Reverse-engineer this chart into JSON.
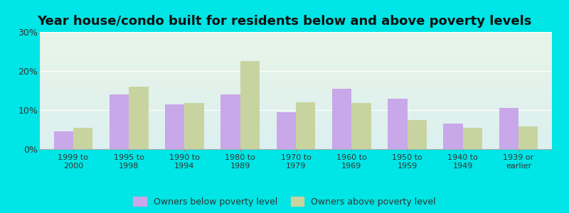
{
  "title": "Year house/condo built for residents below and above poverty levels",
  "categories": [
    "1999 to\n2000",
    "1995 to\n1998",
    "1990 to\n1994",
    "1980 to\n1989",
    "1970 to\n1979",
    "1960 to\n1969",
    "1950 to\n1959",
    "1940 to\n1949",
    "1939 or\nearlier"
  ],
  "below_poverty": [
    4.5,
    14.0,
    11.5,
    14.0,
    9.5,
    15.5,
    13.0,
    6.5,
    10.5
  ],
  "above_poverty": [
    5.5,
    16.0,
    11.8,
    22.5,
    12.0,
    11.8,
    7.5,
    5.5,
    5.8
  ],
  "below_color": "#c8a8e8",
  "above_color": "#c8d4a0",
  "ylim": [
    0,
    30
  ],
  "yticks": [
    0,
    10,
    20,
    30
  ],
  "ytick_labels": [
    "0%",
    "10%",
    "20%",
    "30%"
  ],
  "bg_color_topleft": "#e8f5e8",
  "bg_color_topright": "#f0f8f0",
  "bg_color_bottom": "#d8f4f4",
  "outer_bg": "#00e5e5",
  "title_fontsize": 13,
  "legend_label_below": "Owners below poverty level",
  "legend_label_above": "Owners above poverty level"
}
